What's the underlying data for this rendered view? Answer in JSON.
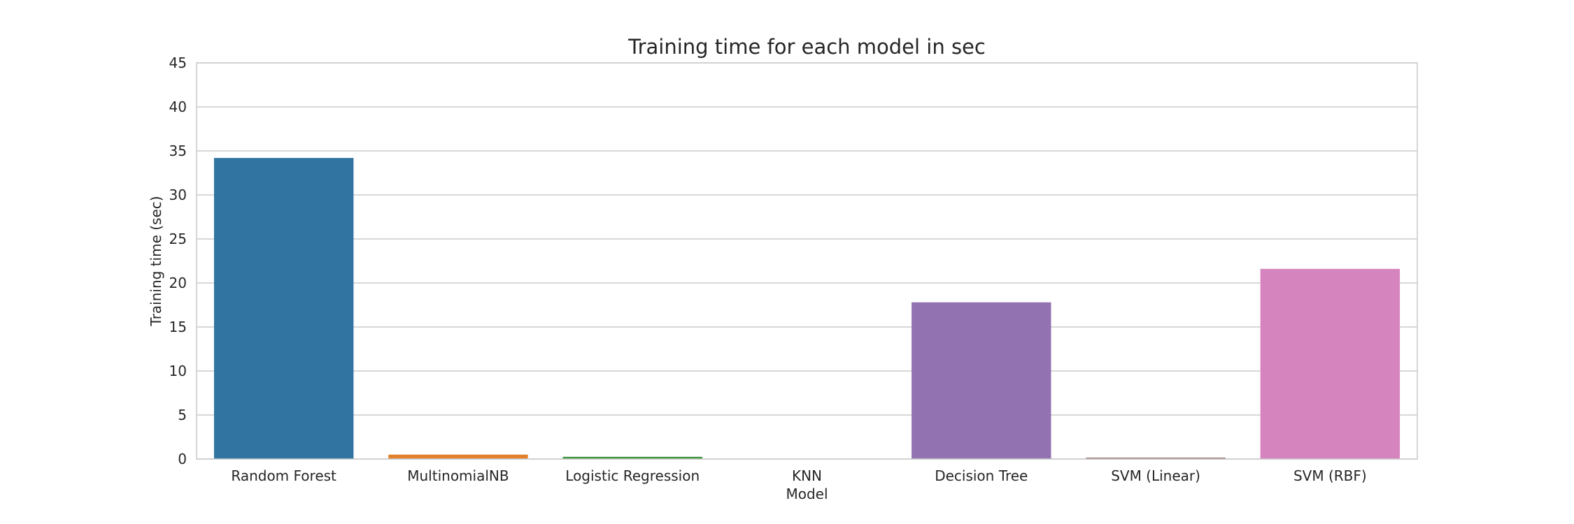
{
  "chart_data": {
    "type": "bar",
    "title": "Training time for each model in sec",
    "xlabel": "Model",
    "ylabel": "Training time (sec)",
    "categories": [
      "Random Forest",
      "MultinomialNB",
      "Logistic Regression",
      "KNN",
      "Decision Tree",
      "SVM (Linear)",
      "SVM (RBF)"
    ],
    "values": [
      34.2,
      0.5,
      0.25,
      0.0,
      17.8,
      0.15,
      21.6
    ],
    "colors": [
      "#3274a1",
      "#e1812c",
      "#3a923a",
      "#c03d3e",
      "#9372b2",
      "#845b53",
      "#d684bd"
    ],
    "ylim": [
      0,
      45
    ],
    "yticks": [
      0,
      5,
      10,
      15,
      20,
      25,
      30,
      35,
      40,
      45
    ],
    "ytick_labels": [
      "0",
      "5",
      "10",
      "15",
      "20",
      "25",
      "30",
      "35",
      "40",
      "45"
    ],
    "grid": true,
    "legend": "none"
  }
}
